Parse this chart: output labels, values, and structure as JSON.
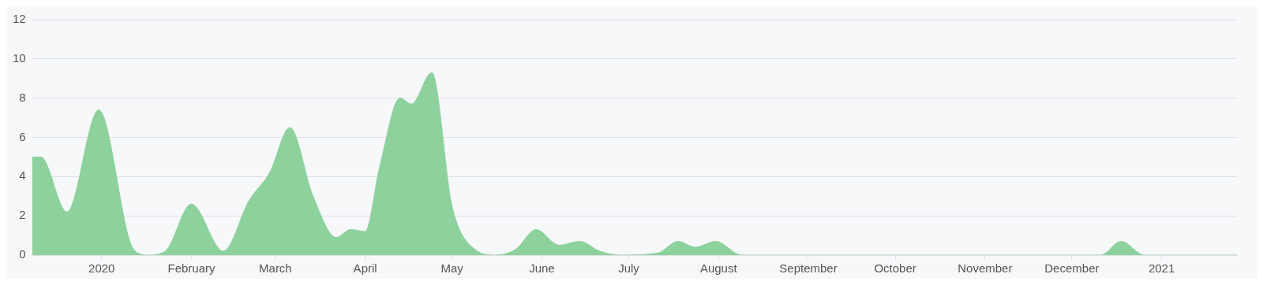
{
  "chart_data": {
    "type": "area",
    "x": [
      "2019-12-08",
      "2019-12-11",
      "2019-12-20",
      "2019-12-31",
      "2020-01-12",
      "2020-01-17",
      "2020-01-23",
      "2020-02-01",
      "2020-02-12",
      "2020-02-21",
      "2020-02-28",
      "2020-03-06",
      "2020-03-14",
      "2020-03-22",
      "2020-03-27",
      "2020-04-01",
      "2020-04-06",
      "2020-04-13",
      "2020-04-17",
      "2020-04-24",
      "2020-05-01",
      "2020-05-08",
      "2020-05-16",
      "2020-05-23",
      "2020-05-30",
      "2020-06-07",
      "2020-06-14",
      "2020-06-21",
      "2020-06-28",
      "2020-07-11",
      "2020-07-18",
      "2020-07-24",
      "2020-07-31",
      "2020-08-09",
      "2020-12-11",
      "2020-12-18",
      "2020-12-26",
      "2021-01-27"
    ],
    "series": [
      {
        "color": "#8dd19d",
        "values": [
          5,
          5,
          2.2,
          7.4,
          0.3,
          0,
          0.2,
          2.6,
          0.2,
          2.8,
          4.2,
          6.5,
          3,
          0.9,
          1.3,
          1.2,
          4.5,
          8,
          7.7,
          9.3,
          2.5,
          0.4,
          0,
          0.3,
          1.3,
          0.5,
          0.7,
          0.2,
          0,
          0.1,
          0.7,
          0.4,
          0.7,
          0,
          0,
          0.7,
          0,
          0
        ]
      }
    ],
    "xlim": [
      "2019-12-08",
      "2021-01-27"
    ],
    "xticks": [
      {
        "value": "2020-01-01",
        "label": "2020"
      },
      {
        "value": "2020-02-01",
        "label": "February"
      },
      {
        "value": "2020-03-01",
        "label": "March"
      },
      {
        "value": "2020-04-01",
        "label": "April"
      },
      {
        "value": "2020-05-01",
        "label": "May"
      },
      {
        "value": "2020-06-01",
        "label": "June"
      },
      {
        "value": "2020-07-01",
        "label": "July"
      },
      {
        "value": "2020-08-01",
        "label": "August"
      },
      {
        "value": "2020-09-01",
        "label": "September"
      },
      {
        "value": "2020-10-01",
        "label": "October"
      },
      {
        "value": "2020-11-01",
        "label": "November"
      },
      {
        "value": "2020-12-01",
        "label": "December"
      },
      {
        "value": "2021-01-01",
        "label": "2021"
      }
    ],
    "ylim": [
      0,
      12
    ],
    "yticks": [
      0,
      2,
      4,
      6,
      8,
      10,
      12
    ],
    "grid": "y",
    "legend": false
  }
}
